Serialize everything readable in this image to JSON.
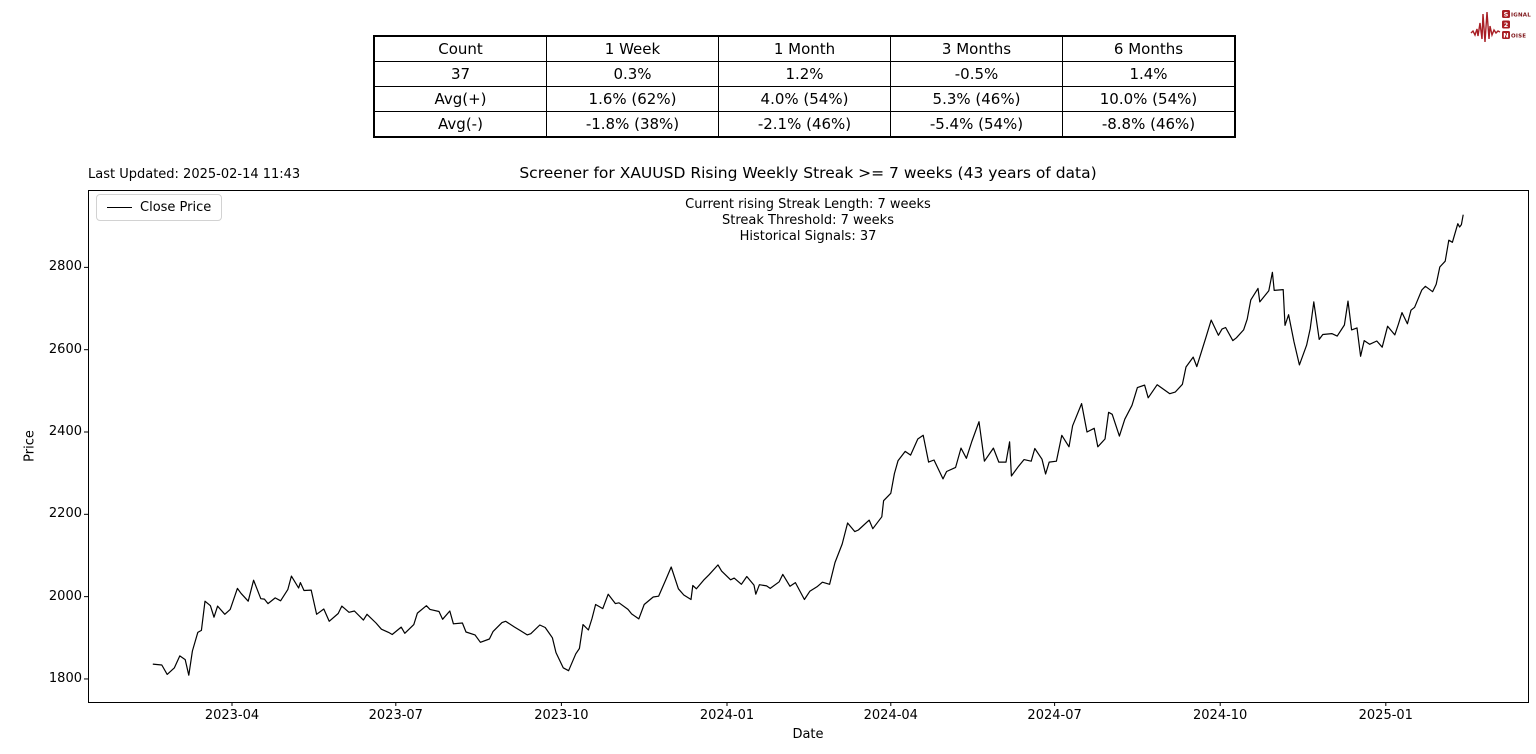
{
  "page": {
    "last_updated": "Last Updated: 2025-02-14 11:43"
  },
  "stats_table": {
    "columns": [
      "Count",
      "1 Week",
      "1 Month",
      "3 Months",
      "6 Months"
    ],
    "rows": [
      [
        "37",
        "0.3%",
        "1.2%",
        "-0.5%",
        "1.4%"
      ],
      [
        "Avg(+)",
        "1.6% (62%)",
        "4.0% (54%)",
        "5.3% (46%)",
        "10.0% (54%)"
      ],
      [
        "Avg(-)",
        "-1.8% (38%)",
        "-2.1% (46%)",
        "-5.4% (54%)",
        "-8.8% (46%)"
      ]
    ]
  },
  "logo": {
    "word1_initial": "S",
    "word1_rest": "IGNAL",
    "middle": "2",
    "word2_initial": "N",
    "word2_rest": "OISE",
    "accent_color": "#a81e24",
    "text_color": "#7c1216"
  },
  "chart_data": {
    "type": "line",
    "title": "Screener for XAUUSD Rising Weekly Streak >= 7 weeks (43 years of data)",
    "xlabel": "Date",
    "ylabel": "Price",
    "annotations": [
      "Current rising Streak Length: 7 weeks",
      "Streak Threshold: 7 weeks",
      "Historical Signals: 37"
    ],
    "legend_position": "upper left",
    "grid": false,
    "ylim": [
      1744,
      2988
    ],
    "x_margin_days": 36,
    "y_ticks": [
      1800,
      2000,
      2200,
      2400,
      2600,
      2800
    ],
    "x_ticks": [
      {
        "date": "2023-04-01",
        "label": "2023-04"
      },
      {
        "date": "2023-07-01",
        "label": "2023-07"
      },
      {
        "date": "2023-10-01",
        "label": "2023-10"
      },
      {
        "date": "2024-01-01",
        "label": "2024-01"
      },
      {
        "date": "2024-04-01",
        "label": "2024-04"
      },
      {
        "date": "2024-07-01",
        "label": "2024-07"
      },
      {
        "date": "2024-10-01",
        "label": "2024-10"
      },
      {
        "date": "2025-01-01",
        "label": "2025-01"
      }
    ],
    "series": [
      {
        "name": "Close Price",
        "color": "#000000",
        "points": [
          [
            "2023-02-16",
            1836
          ],
          [
            "2023-02-21",
            1834
          ],
          [
            "2023-02-24",
            1811
          ],
          [
            "2023-02-28",
            1827
          ],
          [
            "2023-03-03",
            1856
          ],
          [
            "2023-03-06",
            1847
          ],
          [
            "2023-03-08",
            1809
          ],
          [
            "2023-03-10",
            1868
          ],
          [
            "2023-03-13",
            1913
          ],
          [
            "2023-03-15",
            1918
          ],
          [
            "2023-03-17",
            1989
          ],
          [
            "2023-03-20",
            1978
          ],
          [
            "2023-03-22",
            1950
          ],
          [
            "2023-03-24",
            1977
          ],
          [
            "2023-03-28",
            1957
          ],
          [
            "2023-03-31",
            1969
          ],
          [
            "2023-04-04",
            2020
          ],
          [
            "2023-04-06",
            2008
          ],
          [
            "2023-04-10",
            1989
          ],
          [
            "2023-04-13",
            2040
          ],
          [
            "2023-04-17",
            1995
          ],
          [
            "2023-04-19",
            1994
          ],
          [
            "2023-04-21",
            1983
          ],
          [
            "2023-04-25",
            1997
          ],
          [
            "2023-04-28",
            1990
          ],
          [
            "2023-05-02",
            2017
          ],
          [
            "2023-05-04",
            2050
          ],
          [
            "2023-05-08",
            2021
          ],
          [
            "2023-05-09",
            2034
          ],
          [
            "2023-05-11",
            2015
          ],
          [
            "2023-05-15",
            2016
          ],
          [
            "2023-05-18",
            1957
          ],
          [
            "2023-05-22",
            1970
          ],
          [
            "2023-05-25",
            1940
          ],
          [
            "2023-05-30",
            1959
          ],
          [
            "2023-06-01",
            1977
          ],
          [
            "2023-06-05",
            1962
          ],
          [
            "2023-06-08",
            1965
          ],
          [
            "2023-06-13",
            1943
          ],
          [
            "2023-06-15",
            1957
          ],
          [
            "2023-06-20",
            1936
          ],
          [
            "2023-06-23",
            1921
          ],
          [
            "2023-06-27",
            1913
          ],
          [
            "2023-06-29",
            1908
          ],
          [
            "2023-07-04",
            1926
          ],
          [
            "2023-07-06",
            1911
          ],
          [
            "2023-07-11",
            1932
          ],
          [
            "2023-07-13",
            1960
          ],
          [
            "2023-07-18",
            1978
          ],
          [
            "2023-07-20",
            1969
          ],
          [
            "2023-07-25",
            1964
          ],
          [
            "2023-07-27",
            1945
          ],
          [
            "2023-07-31",
            1965
          ],
          [
            "2023-08-02",
            1934
          ],
          [
            "2023-08-07",
            1936
          ],
          [
            "2023-08-09",
            1914
          ],
          [
            "2023-08-14",
            1907
          ],
          [
            "2023-08-17",
            1889
          ],
          [
            "2023-08-22",
            1897
          ],
          [
            "2023-08-24",
            1915
          ],
          [
            "2023-08-29",
            1937
          ],
          [
            "2023-08-31",
            1940
          ],
          [
            "2023-09-05",
            1926
          ],
          [
            "2023-09-08",
            1918
          ],
          [
            "2023-09-12",
            1907
          ],
          [
            "2023-09-14",
            1910
          ],
          [
            "2023-09-19",
            1931
          ],
          [
            "2023-09-22",
            1925
          ],
          [
            "2023-09-26",
            1900
          ],
          [
            "2023-09-28",
            1864
          ],
          [
            "2023-10-02",
            1827
          ],
          [
            "2023-10-05",
            1820
          ],
          [
            "2023-10-09",
            1861
          ],
          [
            "2023-10-11",
            1874
          ],
          [
            "2023-10-13",
            1932
          ],
          [
            "2023-10-16",
            1919
          ],
          [
            "2023-10-18",
            1947
          ],
          [
            "2023-10-20",
            1981
          ],
          [
            "2023-10-24",
            1971
          ],
          [
            "2023-10-27",
            2006
          ],
          [
            "2023-10-31",
            1983
          ],
          [
            "2023-11-02",
            1985
          ],
          [
            "2023-11-07",
            1969
          ],
          [
            "2023-11-09",
            1958
          ],
          [
            "2023-11-13",
            1946
          ],
          [
            "2023-11-16",
            1981
          ],
          [
            "2023-11-21",
            1999
          ],
          [
            "2023-11-24",
            2001
          ],
          [
            "2023-11-28",
            2041
          ],
          [
            "2023-12-01",
            2072
          ],
          [
            "2023-12-05",
            2019
          ],
          [
            "2023-12-08",
            2004
          ],
          [
            "2023-12-12",
            1993
          ],
          [
            "2023-12-13",
            2027
          ],
          [
            "2023-12-15",
            2019
          ],
          [
            "2023-12-19",
            2040
          ],
          [
            "2023-12-22",
            2053
          ],
          [
            "2023-12-27",
            2077
          ],
          [
            "2023-12-29",
            2062
          ],
          [
            "2024-01-03",
            2041
          ],
          [
            "2024-01-05",
            2045
          ],
          [
            "2024-01-09",
            2030
          ],
          [
            "2024-01-12",
            2049
          ],
          [
            "2024-01-16",
            2028
          ],
          [
            "2024-01-17",
            2006
          ],
          [
            "2024-01-19",
            2029
          ],
          [
            "2024-01-23",
            2026
          ],
          [
            "2024-01-25",
            2020
          ],
          [
            "2024-01-30",
            2036
          ],
          [
            "2024-02-01",
            2054
          ],
          [
            "2024-02-05",
            2025
          ],
          [
            "2024-02-08",
            2034
          ],
          [
            "2024-02-13",
            1993
          ],
          [
            "2024-02-16",
            2013
          ],
          [
            "2024-02-20",
            2024
          ],
          [
            "2024-02-23",
            2035
          ],
          [
            "2024-02-27",
            2030
          ],
          [
            "2024-03-01",
            2083
          ],
          [
            "2024-03-05",
            2128
          ],
          [
            "2024-03-08",
            2179
          ],
          [
            "2024-03-12",
            2158
          ],
          [
            "2024-03-14",
            2162
          ],
          [
            "2024-03-20",
            2186
          ],
          [
            "2024-03-22",
            2165
          ],
          [
            "2024-03-27",
            2194
          ],
          [
            "2024-03-28",
            2233
          ],
          [
            "2024-04-01",
            2251
          ],
          [
            "2024-04-03",
            2299
          ],
          [
            "2024-04-05",
            2330
          ],
          [
            "2024-04-09",
            2353
          ],
          [
            "2024-04-12",
            2344
          ],
          [
            "2024-04-16",
            2383
          ],
          [
            "2024-04-19",
            2392
          ],
          [
            "2024-04-22",
            2327
          ],
          [
            "2024-04-25",
            2332
          ],
          [
            "2024-04-30",
            2286
          ],
          [
            "2024-05-02",
            2304
          ],
          [
            "2024-05-07",
            2314
          ],
          [
            "2024-05-10",
            2361
          ],
          [
            "2024-05-13",
            2336
          ],
          [
            "2024-05-16",
            2377
          ],
          [
            "2024-05-20",
            2425
          ],
          [
            "2024-05-23",
            2329
          ],
          [
            "2024-05-28",
            2361
          ],
          [
            "2024-05-31",
            2327
          ],
          [
            "2024-06-04",
            2327
          ],
          [
            "2024-06-06",
            2376
          ],
          [
            "2024-06-07",
            2293
          ],
          [
            "2024-06-11",
            2317
          ],
          [
            "2024-06-14",
            2333
          ],
          [
            "2024-06-18",
            2329
          ],
          [
            "2024-06-20",
            2360
          ],
          [
            "2024-06-24",
            2334
          ],
          [
            "2024-06-26",
            2298
          ],
          [
            "2024-06-28",
            2327
          ],
          [
            "2024-07-02",
            2329
          ],
          [
            "2024-07-05",
            2392
          ],
          [
            "2024-07-09",
            2364
          ],
          [
            "2024-07-11",
            2415
          ],
          [
            "2024-07-16",
            2469
          ],
          [
            "2024-07-19",
            2400
          ],
          [
            "2024-07-23",
            2409
          ],
          [
            "2024-07-25",
            2364
          ],
          [
            "2024-07-29",
            2383
          ],
          [
            "2024-07-31",
            2448
          ],
          [
            "2024-08-02",
            2443
          ],
          [
            "2024-08-06",
            2390
          ],
          [
            "2024-08-09",
            2431
          ],
          [
            "2024-08-13",
            2465
          ],
          [
            "2024-08-16",
            2508
          ],
          [
            "2024-08-20",
            2514
          ],
          [
            "2024-08-22",
            2483
          ],
          [
            "2024-08-27",
            2515
          ],
          [
            "2024-09-03",
            2493
          ],
          [
            "2024-09-06",
            2497
          ],
          [
            "2024-09-10",
            2516
          ],
          [
            "2024-09-12",
            2558
          ],
          [
            "2024-09-16",
            2582
          ],
          [
            "2024-09-18",
            2559
          ],
          [
            "2024-09-23",
            2629
          ],
          [
            "2024-09-26",
            2672
          ],
          [
            "2024-09-30",
            2635
          ],
          [
            "2024-10-02",
            2650
          ],
          [
            "2024-10-04",
            2654
          ],
          [
            "2024-10-08",
            2622
          ],
          [
            "2024-10-10",
            2629
          ],
          [
            "2024-10-14",
            2648
          ],
          [
            "2024-10-16",
            2674
          ],
          [
            "2024-10-18",
            2721
          ],
          [
            "2024-10-22",
            2749
          ],
          [
            "2024-10-23",
            2716
          ],
          [
            "2024-10-28",
            2743
          ],
          [
            "2024-10-30",
            2788
          ],
          [
            "2024-10-31",
            2744
          ],
          [
            "2024-11-05",
            2746
          ],
          [
            "2024-11-06",
            2659
          ],
          [
            "2024-11-08",
            2685
          ],
          [
            "2024-11-11",
            2619
          ],
          [
            "2024-11-14",
            2563
          ],
          [
            "2024-11-18",
            2611
          ],
          [
            "2024-11-20",
            2651
          ],
          [
            "2024-11-22",
            2716
          ],
          [
            "2024-11-25",
            2625
          ],
          [
            "2024-11-27",
            2637
          ],
          [
            "2024-12-02",
            2639
          ],
          [
            "2024-12-05",
            2633
          ],
          [
            "2024-12-09",
            2660
          ],
          [
            "2024-12-11",
            2718
          ],
          [
            "2024-12-13",
            2648
          ],
          [
            "2024-12-16",
            2653
          ],
          [
            "2024-12-18",
            2584
          ],
          [
            "2024-12-20",
            2622
          ],
          [
            "2024-12-23",
            2613
          ],
          [
            "2024-12-27",
            2621
          ],
          [
            "2024-12-30",
            2606
          ],
          [
            "2025-01-02",
            2657
          ],
          [
            "2025-01-06",
            2636
          ],
          [
            "2025-01-08",
            2662
          ],
          [
            "2025-01-10",
            2690
          ],
          [
            "2025-01-13",
            2663
          ],
          [
            "2025-01-15",
            2696
          ],
          [
            "2025-01-17",
            2703
          ],
          [
            "2025-01-21",
            2745
          ],
          [
            "2025-01-23",
            2754
          ],
          [
            "2025-01-27",
            2741
          ],
          [
            "2025-01-29",
            2759
          ],
          [
            "2025-01-31",
            2801
          ],
          [
            "2025-02-03",
            2815
          ],
          [
            "2025-02-05",
            2866
          ],
          [
            "2025-02-07",
            2861
          ],
          [
            "2025-02-10",
            2906
          ],
          [
            "2025-02-11",
            2898
          ],
          [
            "2025-02-12",
            2904
          ],
          [
            "2025-02-13",
            2928
          ]
        ]
      }
    ]
  }
}
